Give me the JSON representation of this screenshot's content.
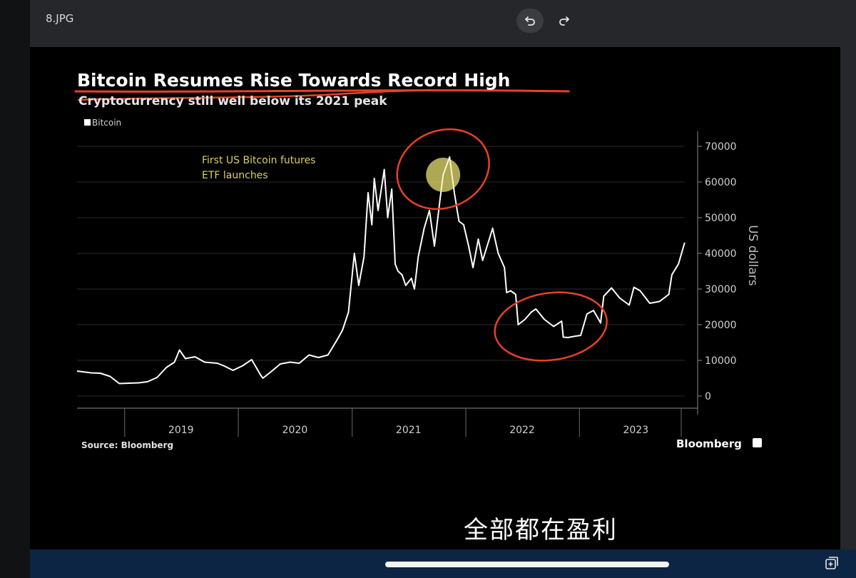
{
  "viewer": {
    "filename": "8.JPG",
    "undo_icon": "undo-icon",
    "redo_icon": "redo-icon",
    "gallery_icon": "add-to-gallery-icon"
  },
  "overlay": {
    "caption": "全部都在盈利"
  },
  "chart_data": {
    "type": "line",
    "title": "Bitcoin Resumes Rise Towards Record High",
    "subtitle": "Cryptocurrency still well below its 2021 peak",
    "legend": [
      "Bitcoin"
    ],
    "legend_position": "top-left",
    "ylabel": "US dollars",
    "ylim": [
      0,
      70000
    ],
    "y_ticks": [
      "0",
      "10000",
      "20000",
      "30000",
      "40000",
      "50000",
      "60000",
      "70000"
    ],
    "y_axis_side": "right",
    "x_ticks": [
      "2019",
      "2020",
      "2021",
      "2022",
      "2023"
    ],
    "xlim": [
      "2018-08-01",
      "2023-12-10"
    ],
    "grid": true,
    "annotation": "First US Bitcoin futures\nETF launches",
    "source": "Source: Bloomberg",
    "brand": "Bloomberg",
    "colors": {
      "line": "#ffffff",
      "highlight": "#e8e070",
      "markup": "#e8402a",
      "annotation_text": "#d9d25a"
    },
    "series": [
      {
        "name": "Bitcoin",
        "x": [
          "2018-08-01",
          "2018-09-15",
          "2018-10-15",
          "2018-11-15",
          "2018-12-15",
          "2019-01-15",
          "2019-02-15",
          "2019-03-15",
          "2019-04-15",
          "2019-05-15",
          "2019-06-10",
          "2019-06-26",
          "2019-07-15",
          "2019-08-15",
          "2019-09-15",
          "2019-10-25",
          "2019-11-15",
          "2019-12-15",
          "2020-01-15",
          "2020-02-13",
          "2020-03-12",
          "2020-03-20",
          "2020-04-15",
          "2020-05-15",
          "2020-06-15",
          "2020-07-15",
          "2020-08-15",
          "2020-09-15",
          "2020-10-15",
          "2020-11-15",
          "2020-12-01",
          "2020-12-20",
          "2021-01-08",
          "2021-01-22",
          "2021-02-08",
          "2021-02-21",
          "2021-03-05",
          "2021-03-13",
          "2021-03-25",
          "2021-04-14",
          "2021-04-25",
          "2021-05-08",
          "2021-05-19",
          "2021-05-28",
          "2021-06-10",
          "2021-06-22",
          "2021-07-10",
          "2021-07-20",
          "2021-08-01",
          "2021-08-20",
          "2021-09-06",
          "2021-09-22",
          "2021-10-10",
          "2021-10-20",
          "2021-11-10",
          "2021-11-25",
          "2021-12-10",
          "2021-12-25",
          "2022-01-10",
          "2022-01-24",
          "2022-02-10",
          "2022-02-24",
          "2022-03-28",
          "2022-04-15",
          "2022-05-05",
          "2022-05-12",
          "2022-05-25",
          "2022-06-10",
          "2022-06-18",
          "2022-07-10",
          "2022-07-30",
          "2022-08-14",
          "2022-09-10",
          "2022-10-10",
          "2022-11-05",
          "2022-11-10",
          "2022-11-25",
          "2022-12-20",
          "2023-01-05",
          "2023-01-25",
          "2023-02-15",
          "2023-03-10",
          "2023-03-20",
          "2023-04-14",
          "2023-05-10",
          "2023-06-10",
          "2023-06-25",
          "2023-07-15",
          "2023-08-15",
          "2023-09-15",
          "2023-10-15",
          "2023-10-25",
          "2023-11-15",
          "2023-12-05"
        ],
        "values": [
          7000,
          6500,
          6400,
          5500,
          3500,
          3600,
          3700,
          4000,
          5200,
          8000,
          9500,
          12900,
          10500,
          11000,
          9500,
          9200,
          8500,
          7200,
          8500,
          10200,
          6000,
          5000,
          6800,
          9000,
          9500,
          9200,
          11500,
          10800,
          11500,
          16000,
          18500,
          23500,
          40000,
          31000,
          39000,
          57000,
          48000,
          61000,
          52000,
          63500,
          50000,
          58000,
          37000,
          35000,
          34000,
          31000,
          33000,
          30000,
          39000,
          47000,
          52000,
          42000,
          55000,
          62000,
          67000,
          57000,
          49000,
          48000,
          42000,
          36000,
          44000,
          38000,
          47000,
          40000,
          36000,
          29000,
          29500,
          28500,
          20000,
          21500,
          23500,
          24400,
          21500,
          19500,
          21000,
          16500,
          16400,
          16800,
          17000,
          23000,
          24000,
          20500,
          28000,
          30300,
          27500,
          25500,
          30500,
          29500,
          26000,
          26500,
          28500,
          34000,
          37000,
          43000
        ]
      }
    ]
  }
}
